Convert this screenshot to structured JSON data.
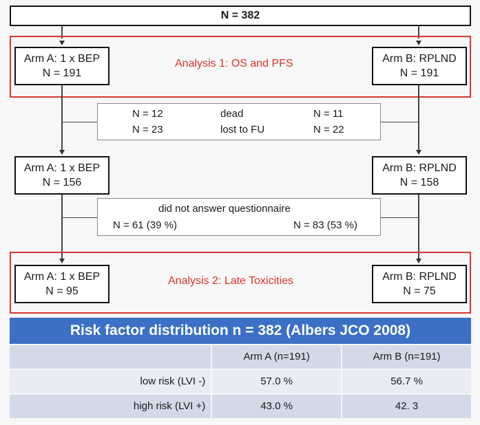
{
  "top": {
    "label": "N = 382"
  },
  "stage1": {
    "arm_a": {
      "title": "Arm A: 1 x BEP",
      "n": "N = 191"
    },
    "arm_b": {
      "title": "Arm B: RPLND",
      "n": "N = 191"
    },
    "analysis": "Analysis 1: OS and PFS"
  },
  "loss1": {
    "rows": [
      {
        "a": "N = 12",
        "label": "dead",
        "b": "N = 11"
      },
      {
        "a": "N = 23",
        "label": "lost to FU",
        "b": "N = 22"
      }
    ]
  },
  "stage2": {
    "arm_a": {
      "title": "Arm A: 1 x BEP",
      "n": "N = 156"
    },
    "arm_b": {
      "title": "Arm B: RPLND",
      "n": "N = 158"
    }
  },
  "loss2": {
    "label": "did not answer questionnaire",
    "a": "N = 61 (39 %)",
    "b": "N = 83 (53 %)"
  },
  "stage3": {
    "arm_a": {
      "title": "Arm A: 1 x BEP",
      "n": "N = 95"
    },
    "arm_b": {
      "title": "Arm B: RPLND",
      "n": "N = 75"
    },
    "analysis": "Analysis 2: Late Toxicities"
  },
  "table": {
    "title": "Risk factor distribution  n = 382 (Albers JCO 2008)",
    "headers": [
      "",
      "Arm A (n=191)",
      "Arm B (n=191)"
    ],
    "rows": [
      [
        "low risk (LVI -)",
        "57.0 %",
        "56.7 %"
      ],
      [
        "high risk (LVI +)",
        "43.0 %",
        "42. 3"
      ]
    ]
  },
  "colors": {
    "highlight_red": "#d7362f",
    "header_blue": "#3b70c6",
    "row_blue": "#d3d9e8"
  }
}
